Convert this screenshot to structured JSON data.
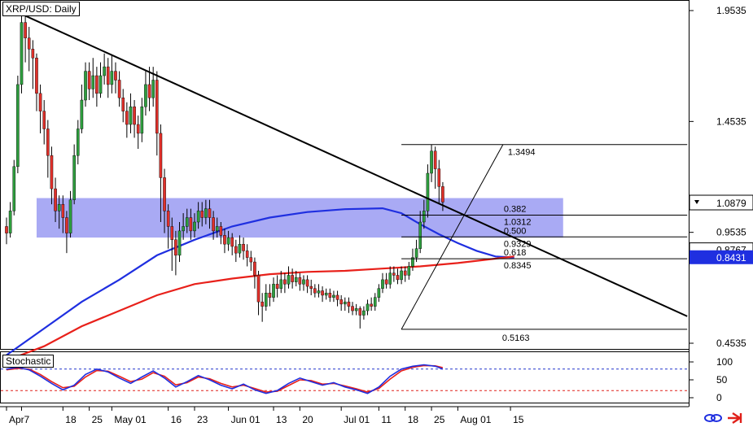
{
  "title": "XRP/USD: Daily",
  "indicator_label": "Stochastic",
  "colors": {
    "up_candle": "#2e9e3e",
    "down_candle": "#e0302a",
    "wick": "#000000",
    "ma_fast": "#1f2fe0",
    "ma_slow": "#e8201a",
    "zone_fill": "#8c8ef0",
    "stoch_k": "#1f2fe0",
    "stoch_d": "#e8201a",
    "stoch_level_hi": "#2033cc",
    "stoch_level_lo": "#e0201a",
    "price_tag_bg": "#1f2fe0"
  },
  "icons": [
    "link-icon",
    "arrow-icon"
  ],
  "chart_data": {
    "type": "candlestick",
    "y_axis_ticks": [
      "1.9535",
      "1.4535",
      "0.9535",
      "0.4535"
    ],
    "y_range": [
      0.375,
      1.98
    ],
    "price_tags": [
      {
        "value": 1.0879,
        "label": "1.0879",
        "style": "current"
      },
      {
        "value": 0.8767,
        "label": "0.8767",
        "style": "plain"
      },
      {
        "value": 0.8431,
        "label": "0.8431",
        "style": "highlight"
      }
    ],
    "x_axis_labels": [
      {
        "label": "Apr",
        "day": 0
      },
      {
        "label": "7",
        "day": 4
      },
      {
        "label": "18",
        "day": 15
      },
      {
        "label": "25",
        "day": 22
      },
      {
        "label": "May 01",
        "day": 28
      },
      {
        "label": "16",
        "day": 43
      },
      {
        "label": "23",
        "day": 50
      },
      {
        "label": "Jun 01",
        "day": 59
      },
      {
        "label": "13",
        "day": 71
      },
      {
        "label": "20",
        "day": 78
      },
      {
        "label": "Jul 01",
        "day": 89
      },
      {
        "label": "11",
        "day": 99
      },
      {
        "label": "18",
        "day": 106
      },
      {
        "label": "25",
        "day": 113
      },
      {
        "label": "Aug 01",
        "day": 120
      },
      {
        "label": "15",
        "day": 134
      }
    ],
    "trendline": {
      "from": {
        "day": 5,
        "price": 1.93
      },
      "to": {
        "day": 181,
        "price": 0.575
      }
    },
    "zone": {
      "day_start": 8,
      "day_end": 148,
      "top": 1.108,
      "bottom": 0.93
    },
    "fibonacci": {
      "swing_low": {
        "day": 105,
        "price": 0.5163
      },
      "swing_high": {
        "day": 132,
        "price": 1.3494
      },
      "line_day_start": 105,
      "line_day_end": 181,
      "levels": [
        {
          "ratio": "0.382",
          "value": "1.0312",
          "price": 1.0312
        },
        {
          "ratio": "0.500",
          "value": "0.9329",
          "price": 0.9329
        },
        {
          "ratio": "0.618",
          "value": "0.8345",
          "price": 0.8345
        }
      ],
      "high_label": "1.3494",
      "low_label": "0.5163"
    },
    "moving_averages": [
      {
        "name_color": "ma_fast",
        "points": [
          [
            0,
            0.4
          ],
          [
            10,
            0.52
          ],
          [
            20,
            0.64
          ],
          [
            30,
            0.74
          ],
          [
            40,
            0.85
          ],
          [
            50,
            0.92
          ],
          [
            60,
            0.98
          ],
          [
            70,
            1.02
          ],
          [
            80,
            1.045
          ],
          [
            90,
            1.058
          ],
          [
            100,
            1.062
          ],
          [
            105,
            1.04
          ],
          [
            110,
            0.99
          ],
          [
            115,
            0.945
          ],
          [
            120,
            0.905
          ],
          [
            125,
            0.87
          ],
          [
            130,
            0.845
          ],
          [
            135,
            0.84
          ]
        ]
      },
      {
        "name_color": "ma_slow",
        "points": [
          [
            0,
            0.375
          ],
          [
            10,
            0.44
          ],
          [
            20,
            0.53
          ],
          [
            30,
            0.6
          ],
          [
            40,
            0.67
          ],
          [
            50,
            0.72
          ],
          [
            60,
            0.745
          ],
          [
            70,
            0.765
          ],
          [
            80,
            0.775
          ],
          [
            90,
            0.78
          ],
          [
            100,
            0.79
          ],
          [
            110,
            0.8
          ],
          [
            120,
            0.815
          ],
          [
            130,
            0.835
          ],
          [
            135,
            0.845
          ]
        ]
      }
    ],
    "candles": [
      [
        0,
        0.98,
        0.95,
        1.02,
        0.9
      ],
      [
        1,
        0.95,
        1.05,
        1.09,
        0.93
      ],
      [
        2,
        1.05,
        1.25,
        1.28,
        1.03
      ],
      [
        3,
        1.25,
        1.62,
        1.66,
        1.22
      ],
      [
        4,
        1.62,
        1.9,
        1.94,
        1.58
      ],
      [
        5,
        1.9,
        1.83,
        1.93,
        1.72
      ],
      [
        6,
        1.83,
        1.78,
        1.88,
        1.68
      ],
      [
        7,
        1.78,
        1.74,
        1.82,
        1.6
      ],
      [
        8,
        1.74,
        1.58,
        1.76,
        1.5
      ],
      [
        9,
        1.58,
        1.5,
        1.62,
        1.4
      ],
      [
        10,
        1.5,
        1.42,
        1.55,
        1.35
      ],
      [
        11,
        1.42,
        1.3,
        1.46,
        1.2
      ],
      [
        12,
        1.3,
        1.15,
        1.34,
        1.08
      ],
      [
        13,
        1.15,
        1.05,
        1.2,
        1.0
      ],
      [
        14,
        1.05,
        1.08,
        1.12,
        0.97
      ],
      [
        15,
        1.08,
        1.02,
        1.12,
        0.95
      ],
      [
        16,
        1.02,
        0.95,
        1.05,
        0.86
      ],
      [
        17,
        0.95,
        1.1,
        1.14,
        0.93
      ],
      [
        18,
        1.1,
        1.3,
        1.35,
        1.08
      ],
      [
        19,
        1.3,
        1.42,
        1.46,
        1.26
      ],
      [
        20,
        1.42,
        1.55,
        1.62,
        1.4
      ],
      [
        21,
        1.55,
        1.68,
        1.72,
        1.52
      ],
      [
        22,
        1.68,
        1.6,
        1.72,
        1.55
      ],
      [
        23,
        1.6,
        1.66,
        1.74,
        1.56
      ],
      [
        24,
        1.66,
        1.58,
        1.7,
        1.52
      ],
      [
        25,
        1.58,
        1.66,
        1.72,
        1.56
      ],
      [
        26,
        1.66,
        1.7,
        1.76,
        1.62
      ],
      [
        27,
        1.7,
        1.62,
        1.74,
        1.56
      ],
      [
        28,
        1.62,
        1.68,
        1.75,
        1.58
      ],
      [
        29,
        1.68,
        1.64,
        1.72,
        1.58
      ],
      [
        30,
        1.64,
        1.56,
        1.68,
        1.52
      ],
      [
        31,
        1.56,
        1.5,
        1.6,
        1.45
      ],
      [
        32,
        1.5,
        1.44,
        1.54,
        1.38
      ],
      [
        33,
        1.44,
        1.52,
        1.58,
        1.4
      ],
      [
        34,
        1.52,
        1.44,
        1.55,
        1.38
      ],
      [
        35,
        1.44,
        1.4,
        1.48,
        1.33
      ],
      [
        36,
        1.4,
        1.52,
        1.56,
        1.36
      ],
      [
        37,
        1.52,
        1.62,
        1.68,
        1.48
      ],
      [
        38,
        1.62,
        1.56,
        1.7,
        1.5
      ],
      [
        39,
        1.56,
        1.64,
        1.7,
        1.52
      ],
      [
        40,
        1.64,
        1.4,
        1.68,
        1.3
      ],
      [
        41,
        1.4,
        1.2,
        1.44,
        1.0
      ],
      [
        42,
        1.2,
        1.05,
        1.24,
        0.95
      ],
      [
        43,
        1.05,
        0.98,
        1.08,
        0.88
      ],
      [
        44,
        0.98,
        0.92,
        1.02,
        0.78
      ],
      [
        45,
        0.92,
        0.85,
        0.96,
        0.76
      ],
      [
        46,
        0.85,
        0.96,
        1.0,
        0.82
      ],
      [
        47,
        0.96,
        0.98,
        1.04,
        0.92
      ],
      [
        48,
        0.98,
        1.02,
        1.06,
        0.95
      ],
      [
        49,
        1.02,
        0.96,
        1.06,
        0.92
      ],
      [
        50,
        0.96,
        1.0,
        1.04,
        0.93
      ],
      [
        51,
        1.0,
        1.05,
        1.09,
        0.97
      ],
      [
        52,
        1.05,
        1.02,
        1.09,
        0.98
      ],
      [
        53,
        1.02,
        1.06,
        1.1,
        0.99
      ],
      [
        54,
        1.06,
        1.02,
        1.1,
        0.97
      ],
      [
        55,
        1.02,
        0.96,
        1.05,
        0.92
      ],
      [
        56,
        0.96,
        0.98,
        1.02,
        0.93
      ],
      [
        57,
        0.98,
        0.94,
        1.0,
        0.9
      ],
      [
        58,
        0.94,
        0.9,
        0.97,
        0.86
      ],
      [
        59,
        0.9,
        0.93,
        0.96,
        0.87
      ],
      [
        60,
        0.93,
        0.89,
        0.95,
        0.85
      ],
      [
        61,
        0.89,
        0.86,
        0.92,
        0.82
      ],
      [
        62,
        0.86,
        0.9,
        0.94,
        0.84
      ],
      [
        63,
        0.9,
        0.87,
        0.93,
        0.83
      ],
      [
        64,
        0.87,
        0.84,
        0.9,
        0.8
      ],
      [
        65,
        0.84,
        0.82,
        0.87,
        0.78
      ],
      [
        66,
        0.82,
        0.76,
        0.84,
        0.7
      ],
      [
        67,
        0.76,
        0.64,
        0.78,
        0.58
      ],
      [
        68,
        0.64,
        0.62,
        0.68,
        0.55
      ],
      [
        69,
        0.62,
        0.68,
        0.72,
        0.6
      ],
      [
        70,
        0.68,
        0.66,
        0.72,
        0.62
      ],
      [
        71,
        0.66,
        0.72,
        0.75,
        0.64
      ],
      [
        72,
        0.72,
        0.7,
        0.76,
        0.66
      ],
      [
        73,
        0.7,
        0.74,
        0.78,
        0.68
      ],
      [
        74,
        0.74,
        0.72,
        0.77,
        0.68
      ],
      [
        75,
        0.72,
        0.76,
        0.8,
        0.7
      ],
      [
        76,
        0.76,
        0.73,
        0.79,
        0.7
      ],
      [
        77,
        0.73,
        0.75,
        0.78,
        0.71
      ],
      [
        78,
        0.75,
        0.72,
        0.77,
        0.69
      ],
      [
        79,
        0.72,
        0.74,
        0.76,
        0.69
      ],
      [
        80,
        0.74,
        0.71,
        0.76,
        0.68
      ],
      [
        81,
        0.71,
        0.7,
        0.74,
        0.67
      ],
      [
        82,
        0.7,
        0.68,
        0.72,
        0.66
      ],
      [
        83,
        0.68,
        0.69,
        0.72,
        0.66
      ],
      [
        84,
        0.69,
        0.67,
        0.71,
        0.64
      ],
      [
        85,
        0.67,
        0.68,
        0.7,
        0.65
      ],
      [
        86,
        0.68,
        0.66,
        0.7,
        0.64
      ],
      [
        87,
        0.66,
        0.67,
        0.69,
        0.64
      ],
      [
        88,
        0.67,
        0.65,
        0.69,
        0.62
      ],
      [
        89,
        0.65,
        0.63,
        0.67,
        0.6
      ],
      [
        90,
        0.63,
        0.64,
        0.66,
        0.6
      ],
      [
        91,
        0.64,
        0.62,
        0.66,
        0.59
      ],
      [
        92,
        0.62,
        0.6,
        0.64,
        0.58
      ],
      [
        93,
        0.6,
        0.61,
        0.63,
        0.58
      ],
      [
        94,
        0.61,
        0.58,
        0.62,
        0.52
      ],
      [
        95,
        0.58,
        0.6,
        0.62,
        0.56
      ],
      [
        96,
        0.6,
        0.63,
        0.65,
        0.58
      ],
      [
        97,
        0.63,
        0.62,
        0.66,
        0.6
      ],
      [
        98,
        0.62,
        0.66,
        0.68,
        0.6
      ],
      [
        99,
        0.66,
        0.7,
        0.72,
        0.64
      ],
      [
        100,
        0.7,
        0.74,
        0.77,
        0.68
      ],
      [
        101,
        0.74,
        0.72,
        0.77,
        0.7
      ],
      [
        102,
        0.72,
        0.77,
        0.8,
        0.7
      ],
      [
        103,
        0.77,
        0.76,
        0.8,
        0.73
      ],
      [
        104,
        0.76,
        0.74,
        0.79,
        0.72
      ],
      [
        105,
        0.74,
        0.78,
        0.8,
        0.72
      ],
      [
        106,
        0.78,
        0.76,
        0.8,
        0.73
      ],
      [
        107,
        0.76,
        0.8,
        0.82,
        0.74
      ],
      [
        108,
        0.8,
        0.84,
        0.88,
        0.78
      ],
      [
        109,
        0.84,
        0.88,
        0.92,
        0.82
      ],
      [
        110,
        0.88,
        1.0,
        1.05,
        0.86
      ],
      [
        111,
        1.0,
        1.05,
        1.1,
        0.97
      ],
      [
        112,
        1.05,
        1.22,
        1.26,
        1.02
      ],
      [
        113,
        1.22,
        1.32,
        1.35,
        1.18
      ],
      [
        114,
        1.32,
        1.24,
        1.34,
        1.15
      ],
      [
        115,
        1.24,
        1.16,
        1.28,
        1.08
      ],
      [
        116,
        1.16,
        1.09,
        1.18,
        1.05
      ]
    ],
    "stochastic": {
      "axis_ticks": [
        "100",
        "50",
        "0"
      ],
      "levels": [
        80,
        20
      ],
      "k": [
        [
          0,
          80
        ],
        [
          3,
          85
        ],
        [
          6,
          78
        ],
        [
          9,
          60
        ],
        [
          12,
          40
        ],
        [
          15,
          22
        ],
        [
          18,
          35
        ],
        [
          21,
          65
        ],
        [
          24,
          80
        ],
        [
          27,
          72
        ],
        [
          30,
          55
        ],
        [
          33,
          40
        ],
        [
          36,
          58
        ],
        [
          39,
          75
        ],
        [
          42,
          55
        ],
        [
          45,
          30
        ],
        [
          48,
          45
        ],
        [
          51,
          62
        ],
        [
          54,
          50
        ],
        [
          57,
          35
        ],
        [
          60,
          25
        ],
        [
          63,
          38
        ],
        [
          66,
          22
        ],
        [
          69,
          12
        ],
        [
          72,
          20
        ],
        [
          75,
          40
        ],
        [
          78,
          55
        ],
        [
          81,
          45
        ],
        [
          84,
          35
        ],
        [
          87,
          42
        ],
        [
          90,
          30
        ],
        [
          93,
          22
        ],
        [
          96,
          12
        ],
        [
          99,
          30
        ],
        [
          102,
          60
        ],
        [
          105,
          80
        ],
        [
          108,
          88
        ],
        [
          111,
          92
        ],
        [
          114,
          88
        ],
        [
          116,
          80
        ]
      ],
      "d": [
        [
          0,
          78
        ],
        [
          3,
          82
        ],
        [
          6,
          80
        ],
        [
          9,
          65
        ],
        [
          12,
          45
        ],
        [
          15,
          28
        ],
        [
          18,
          32
        ],
        [
          21,
          58
        ],
        [
          24,
          76
        ],
        [
          27,
          74
        ],
        [
          30,
          60
        ],
        [
          33,
          45
        ],
        [
          36,
          52
        ],
        [
          39,
          70
        ],
        [
          42,
          60
        ],
        [
          45,
          36
        ],
        [
          48,
          42
        ],
        [
          51,
          58
        ],
        [
          54,
          53
        ],
        [
          57,
          40
        ],
        [
          60,
          30
        ],
        [
          63,
          35
        ],
        [
          66,
          26
        ],
        [
          69,
          16
        ],
        [
          72,
          18
        ],
        [
          75,
          34
        ],
        [
          78,
          50
        ],
        [
          81,
          48
        ],
        [
          84,
          38
        ],
        [
          87,
          40
        ],
        [
          90,
          33
        ],
        [
          93,
          25
        ],
        [
          96,
          16
        ],
        [
          99,
          26
        ],
        [
          102,
          52
        ],
        [
          105,
          75
        ],
        [
          108,
          85
        ],
        [
          111,
          90
        ],
        [
          114,
          89
        ],
        [
          116,
          84
        ]
      ]
    }
  }
}
